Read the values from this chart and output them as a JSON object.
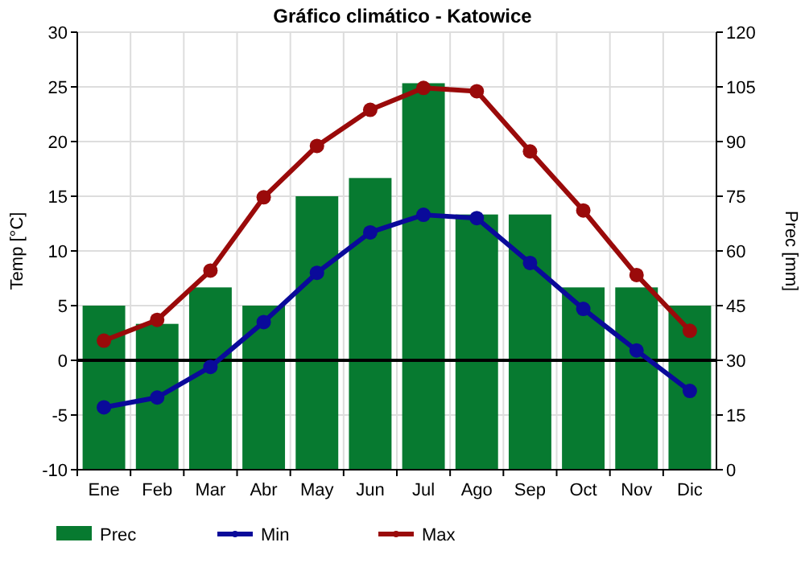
{
  "chart_data": {
    "type": "bar",
    "title": "Gráfico climático - Katowice",
    "ylabel": "Temp [°C]",
    "y2label": "Prec [mm]",
    "categories": [
      "Ene",
      "Feb",
      "Mar",
      "Abr",
      "May",
      "Jun",
      "Jul",
      "Ago",
      "Sep",
      "Oct",
      "Nov",
      "Dic"
    ],
    "series": [
      {
        "name": "Prec",
        "axis": "y2",
        "color": "#077a30",
        "values": [
          45,
          40,
          50,
          45,
          75,
          80,
          106,
          70,
          70,
          50,
          50,
          45
        ]
      },
      {
        "name": "Min",
        "type": "line",
        "color": "#0a0a9a",
        "values": [
          -4.3,
          -3.4,
          -0.6,
          3.5,
          8,
          11.7,
          13.3,
          13,
          8.9,
          4.7,
          0.9,
          -2.8
        ]
      },
      {
        "name": "Max",
        "type": "line",
        "color": "#9a0a0a",
        "values": [
          1.8,
          3.7,
          8.2,
          14.9,
          19.6,
          22.9,
          24.9,
          24.6,
          19.1,
          13.7,
          7.8,
          2.7
        ]
      }
    ],
    "ylim": [
      -10,
      30
    ],
    "yticks": [
      -10,
      -5,
      0,
      5,
      10,
      15,
      20,
      25,
      30
    ],
    "y2lim": [
      0,
      120
    ],
    "y2ticks": [
      0,
      15,
      30,
      45,
      60,
      75,
      90,
      105,
      120
    ],
    "ref_lines": [
      {
        "axis": "y",
        "value": 0,
        "color": "#000000"
      }
    ],
    "grid": true,
    "legend": "bottom",
    "marker": "circle"
  }
}
